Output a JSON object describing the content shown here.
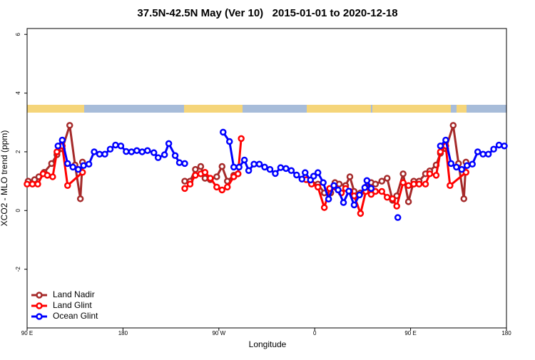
{
  "chart_data": {
    "type": "line",
    "title": "37.5N-42.5N May (Ver 10)   2015-01-01 to 2020-12-18",
    "x_label": "Longitude",
    "y_label": "XCO2 - MLO trend (ppm)",
    "xlim": [
      90,
      540
    ],
    "ylim": [
      -4.0,
      6.2
    ],
    "xticks": [
      {
        "value": 90,
        "label": "90 E"
      },
      {
        "value": 180,
        "label": "180"
      },
      {
        "value": 270,
        "label": "90 W"
      },
      {
        "value": 360,
        "label": "0"
      },
      {
        "value": 450,
        "label": "90 E"
      },
      {
        "value": 540,
        "label": "180"
      }
    ],
    "yticks": [
      -2,
      0,
      2,
      4,
      6
    ],
    "legend": "bottom-left",
    "series": [
      {
        "name": "Land Nadir",
        "color": "#a52a2a",
        "x": [
          91,
          97,
          101,
          106,
          113,
          118,
          123,
          130,
          135,
          140,
          142,
          null,
          238,
          243,
          248,
          253,
          257,
          262,
          268,
          273,
          278,
          284,
          288,
          null,
          356,
          363,
          369,
          375,
          379,
          383,
          389,
          393,
          397,
          403,
          408,
          413,
          417,
          423,
          428,
          433,
          437,
          443,
          448,
          453,
          458,
          464,
          468,
          474,
          478,
          483,
          490,
          495,
          500,
          502
        ],
        "values": [
          1.0,
          1.05,
          1.15,
          1.3,
          1.6,
          1.9,
          2.1,
          2.9,
          1.55,
          0.4,
          1.65,
          null,
          1.0,
          1.0,
          1.4,
          1.5,
          1.1,
          1.05,
          1.15,
          1.5,
          1.0,
          1.2,
          1.25,
          null,
          1.0,
          0.9,
          0.6,
          0.6,
          0.95,
          0.9,
          0.85,
          1.15,
          0.65,
          0.6,
          0.8,
          0.95,
          0.9,
          1.0,
          1.1,
          0.35,
          0.5,
          1.25,
          0.3,
          1.0,
          1.0,
          1.25,
          1.35,
          1.55,
          1.95,
          2.1,
          2.9,
          1.6,
          0.4,
          1.65
        ]
      },
      {
        "name": "Land Glint",
        "color": "#ff0000",
        "x": [
          90,
          95,
          100,
          105,
          109,
          114,
          118,
          123,
          128,
          142,
          null,
          238,
          243,
          248,
          253,
          257,
          262,
          268,
          273,
          278,
          284,
          288,
          291,
          null,
          352,
          357,
          363,
          369,
          374,
          379,
          385,
          389,
          393,
          397,
          403,
          408,
          413,
          417,
          423,
          428,
          433,
          437,
          443,
          448,
          453,
          458,
          464,
          468,
          474,
          478,
          483,
          487,
          502
        ],
        "values": [
          0.9,
          0.9,
          0.9,
          1.25,
          1.2,
          1.15,
          2.0,
          2.2,
          0.85,
          1.3,
          null,
          0.75,
          0.9,
          1.2,
          1.25,
          1.3,
          1.1,
          0.8,
          0.7,
          0.8,
          1.15,
          1.25,
          2.45,
          null,
          1.05,
          0.9,
          0.8,
          0.1,
          0.75,
          0.8,
          0.6,
          0.75,
          0.65,
          0.5,
          -0.1,
          0.65,
          0.55,
          0.65,
          0.65,
          0.45,
          0.4,
          0.15,
          0.95,
          0.85,
          0.9,
          0.9,
          0.9,
          1.25,
          1.2,
          2.0,
          2.2,
          0.85,
          1.3
        ]
      },
      {
        "name": "Ocean Glint",
        "color": "#0000ff",
        "x": [
          119,
          123,
          128,
          133,
          138,
          143,
          148,
          153,
          158,
          163,
          168,
          173,
          178,
          183,
          188,
          193,
          198,
          203,
          209,
          213,
          219,
          223,
          229,
          233,
          238,
          null,
          274,
          280,
          284,
          289,
          294,
          298,
          303,
          308,
          313,
          318,
          323,
          328,
          333,
          338,
          343,
          348,
          351,
          356,
          359,
          363,
          368,
          373,
          378,
          382,
          387,
          392,
          397,
          402,
          407,
          409,
          413,
          null,
          438,
          null,
          478,
          483,
          488,
          493,
          498,
          503,
          508,
          513,
          518,
          523,
          528,
          533,
          538
        ],
        "values": [
          2.2,
          2.4,
          1.6,
          1.48,
          1.4,
          1.53,
          1.58,
          2.0,
          1.92,
          1.92,
          2.09,
          2.23,
          2.2,
          2.01,
          2.0,
          2.04,
          2.0,
          2.04,
          1.97,
          1.8,
          1.9,
          2.28,
          1.87,
          1.63,
          1.6,
          null,
          2.67,
          2.35,
          1.48,
          1.48,
          1.72,
          1.36,
          1.58,
          1.58,
          1.48,
          1.4,
          1.26,
          1.46,
          1.43,
          1.36,
          1.21,
          1.07,
          1.29,
          1.04,
          1.17,
          1.29,
          0.95,
          0.39,
          0.85,
          0.7,
          0.27,
          0.66,
          0.19,
          0.53,
          0.78,
          1.02,
          0.75,
          null,
          -0.24,
          null,
          2.2,
          2.4,
          1.6,
          1.48,
          1.4,
          1.53,
          1.58,
          2.0,
          1.92,
          1.92,
          2.09,
          2.23,
          2.2
        ]
      }
    ]
  }
}
